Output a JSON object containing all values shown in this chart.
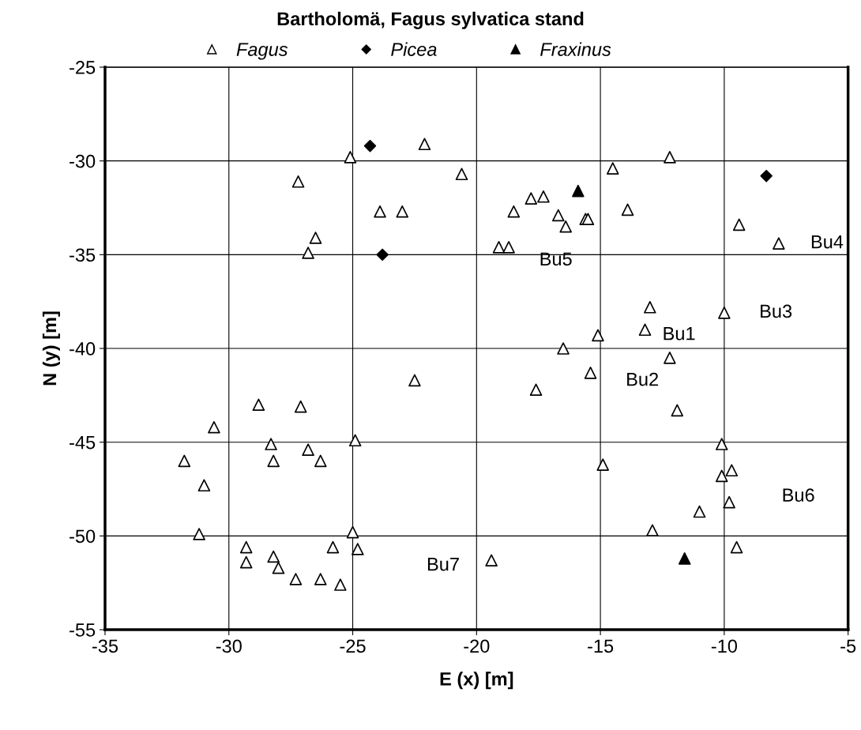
{
  "chart_data": {
    "type": "scatter",
    "title": "Bartholomä, Fagus sylvatica stand",
    "xlabel": "E (x) [m]",
    "ylabel": "N (y) [m]",
    "xlim": [
      -35,
      -5
    ],
    "xticks": [
      -35,
      -30,
      -25,
      -20,
      -15,
      -10,
      -5
    ],
    "ylim": [
      -55,
      -25
    ],
    "yticks": [
      -55,
      -50,
      -45,
      -40,
      -35,
      -30,
      -25
    ],
    "grid": true,
    "legend": "top",
    "series": [
      {
        "name": "Fagus",
        "color": "#ffffff",
        "marker": "triangle",
        "x": [
          -22.1,
          -25.1,
          -20.6,
          -27.2,
          -23.9,
          -23.0,
          -26.5,
          -26.8,
          -12.2,
          -14.5,
          -17.3,
          -17.8,
          -18.5,
          -13.9,
          -16.7,
          -15.6,
          -15.5,
          -16.4,
          -9.4,
          -19.1,
          -18.7,
          -7.8,
          -13.0,
          -10.0,
          -13.2,
          -15.1,
          -16.5,
          -12.2,
          -15.4,
          -17.6,
          -11.9,
          -10.1,
          -14.9,
          -9.7,
          -10.1,
          -9.8,
          -11.0,
          -12.9,
          -9.5,
          -19.4,
          -22.5,
          -28.8,
          -27.1,
          -30.6,
          -24.9,
          -28.3,
          -26.8,
          -31.8,
          -28.2,
          -26.3,
          -31.0,
          -31.2,
          -25.0,
          -29.3,
          -25.8,
          -24.8,
          -28.2,
          -29.3,
          -28.0,
          -27.3,
          -26.3,
          -25.5
        ],
        "values": [
          -29.1,
          -29.8,
          -30.7,
          -31.1,
          -32.7,
          -32.7,
          -34.1,
          -34.9,
          -29.8,
          -30.4,
          -31.9,
          -32.0,
          -32.7,
          -32.6,
          -32.9,
          -33.1,
          -33.1,
          -33.5,
          -33.4,
          -34.6,
          -34.6,
          -34.4,
          -37.8,
          -38.1,
          -39.0,
          -39.3,
          -40.0,
          -40.5,
          -41.3,
          -42.2,
          -43.3,
          -45.1,
          -46.2,
          -46.5,
          -46.8,
          -48.2,
          -48.7,
          -49.7,
          -50.6,
          -51.3,
          -41.7,
          -43.0,
          -43.1,
          -44.2,
          -44.9,
          -45.1,
          -45.4,
          -46.0,
          -46.0,
          -46.0,
          -47.3,
          -49.9,
          -49.8,
          -50.6,
          -50.6,
          -50.7,
          -51.1,
          -51.4,
          -51.7,
          -52.3,
          -52.3,
          -52.6
        ]
      },
      {
        "name": "Picea",
        "color": "#000000",
        "marker": "diamond",
        "x": [
          -24.3,
          -23.8,
          -8.3
        ],
        "values": [
          -29.2,
          -35.0,
          -30.8
        ]
      },
      {
        "name": "Fraxinus",
        "color": "#000000",
        "marker": "triangle",
        "x": [
          -15.9,
          -11.6
        ],
        "values": [
          -31.6,
          -51.2
        ]
      }
    ],
    "annotations": [
      {
        "text": "Bu1",
        "x": -13.2,
        "y": -39.0
      },
      {
        "text": "Bu2",
        "x": -12.2,
        "y": -40.5
      },
      {
        "text": "Bu3",
        "x": -10.0,
        "y": -38.1
      },
      {
        "text": "Bu4",
        "x": -7.8,
        "y": -34.4
      },
      {
        "text": "Bu5",
        "x": -16.4,
        "y": -33.5
      },
      {
        "text": "Bu6",
        "x": -9.8,
        "y": -48.2
      },
      {
        "text": "Bu7",
        "x": -19.4,
        "y": -51.3
      }
    ]
  }
}
